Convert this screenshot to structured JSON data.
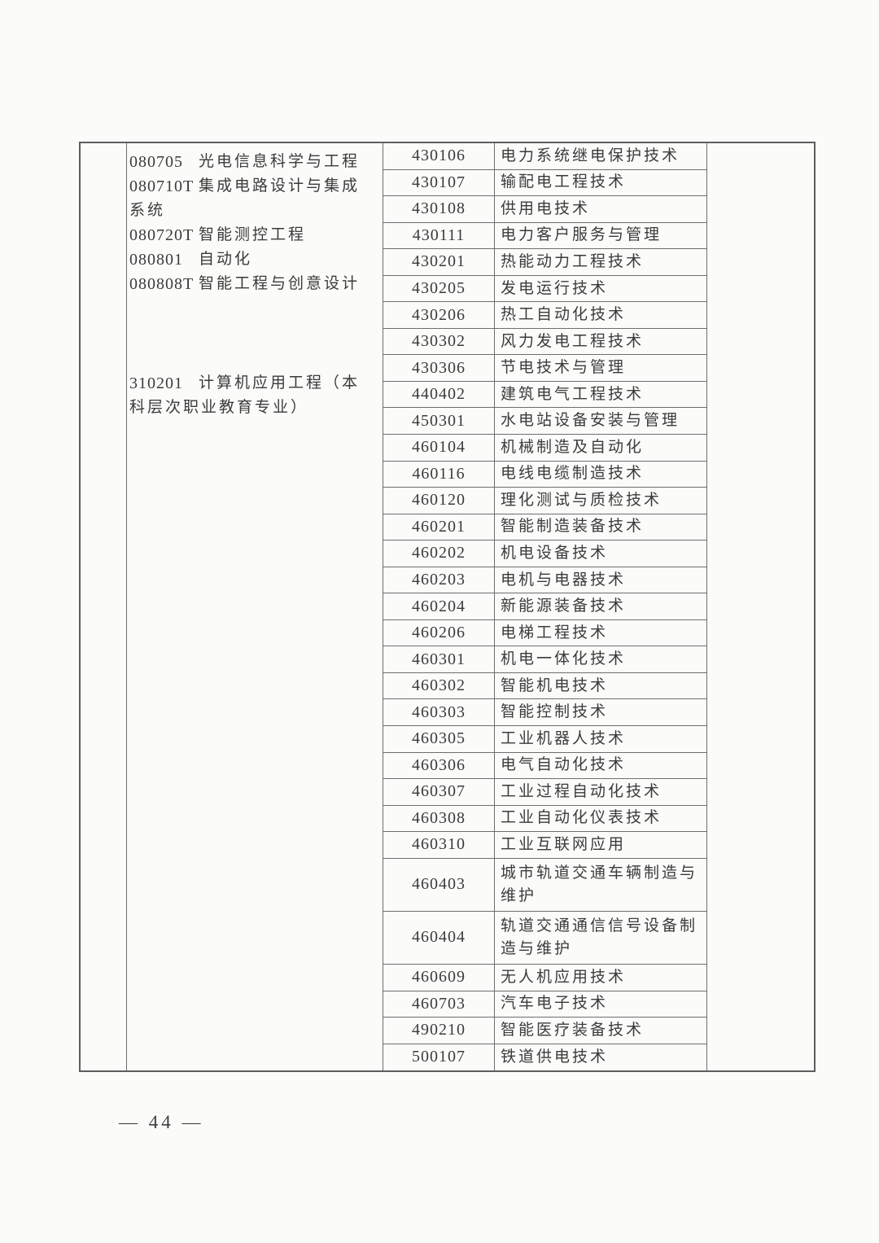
{
  "colors": {
    "text": "#3b3b3b",
    "table_border": "#6e6e6e",
    "page_background": "#fbfbfa"
  },
  "page": {
    "number_label": "— 44 —"
  },
  "table": {
    "undergrad_groups": [
      {
        "items": [
          {
            "code": "080705",
            "name": "光电信息科学与工程"
          },
          {
            "code": "080710T",
            "name": "集成电路设计与集成系统"
          },
          {
            "code": "080720T",
            "name": "智能测控工程"
          },
          {
            "code": "080801",
            "name": "自动化"
          },
          {
            "code": "080808T",
            "name": "智能工程与创意设计"
          }
        ]
      },
      {
        "items": [
          {
            "code": "310201",
            "name": "计算机应用工程（本科层次职业教育专业）"
          }
        ]
      }
    ],
    "vocational_rows": [
      {
        "code": "430106",
        "name": "电力系统继电保护技术"
      },
      {
        "code": "430107",
        "name": "输配电工程技术"
      },
      {
        "code": "430108",
        "name": "供用电技术"
      },
      {
        "code": "430111",
        "name": "电力客户服务与管理"
      },
      {
        "code": "430201",
        "name": "热能动力工程技术"
      },
      {
        "code": "430205",
        "name": "发电运行技术"
      },
      {
        "code": "430206",
        "name": "热工自动化技术"
      },
      {
        "code": "430302",
        "name": "风力发电工程技术"
      },
      {
        "code": "430306",
        "name": "节电技术与管理"
      },
      {
        "code": "440402",
        "name": "建筑电气工程技术"
      },
      {
        "code": "450301",
        "name": "水电站设备安装与管理"
      },
      {
        "code": "460104",
        "name": "机械制造及自动化"
      },
      {
        "code": "460116",
        "name": "电线电缆制造技术"
      },
      {
        "code": "460120",
        "name": "理化测试与质检技术"
      },
      {
        "code": "460201",
        "name": "智能制造装备技术"
      },
      {
        "code": "460202",
        "name": "机电设备技术"
      },
      {
        "code": "460203",
        "name": "电机与电器技术"
      },
      {
        "code": "460204",
        "name": "新能源装备技术"
      },
      {
        "code": "460206",
        "name": "电梯工程技术"
      },
      {
        "code": "460301",
        "name": "机电一体化技术"
      },
      {
        "code": "460302",
        "name": "智能机电技术"
      },
      {
        "code": "460303",
        "name": "智能控制技术"
      },
      {
        "code": "460305",
        "name": "工业机器人技术"
      },
      {
        "code": "460306",
        "name": "电气自动化技术"
      },
      {
        "code": "460307",
        "name": "工业过程自动化技术"
      },
      {
        "code": "460308",
        "name": "工业自动化仪表技术"
      },
      {
        "code": "460310",
        "name": "工业互联网应用"
      },
      {
        "code": "460403",
        "name": "城市轨道交通车辆制造与维护"
      },
      {
        "code": "460404",
        "name": "轨道交通通信信号设备制造与维护"
      },
      {
        "code": "460609",
        "name": "无人机应用技术"
      },
      {
        "code": "460703",
        "name": "汽车电子技术"
      },
      {
        "code": "490210",
        "name": "智能医疗装备技术"
      },
      {
        "code": "500107",
        "name": "铁道供电技术"
      }
    ]
  }
}
